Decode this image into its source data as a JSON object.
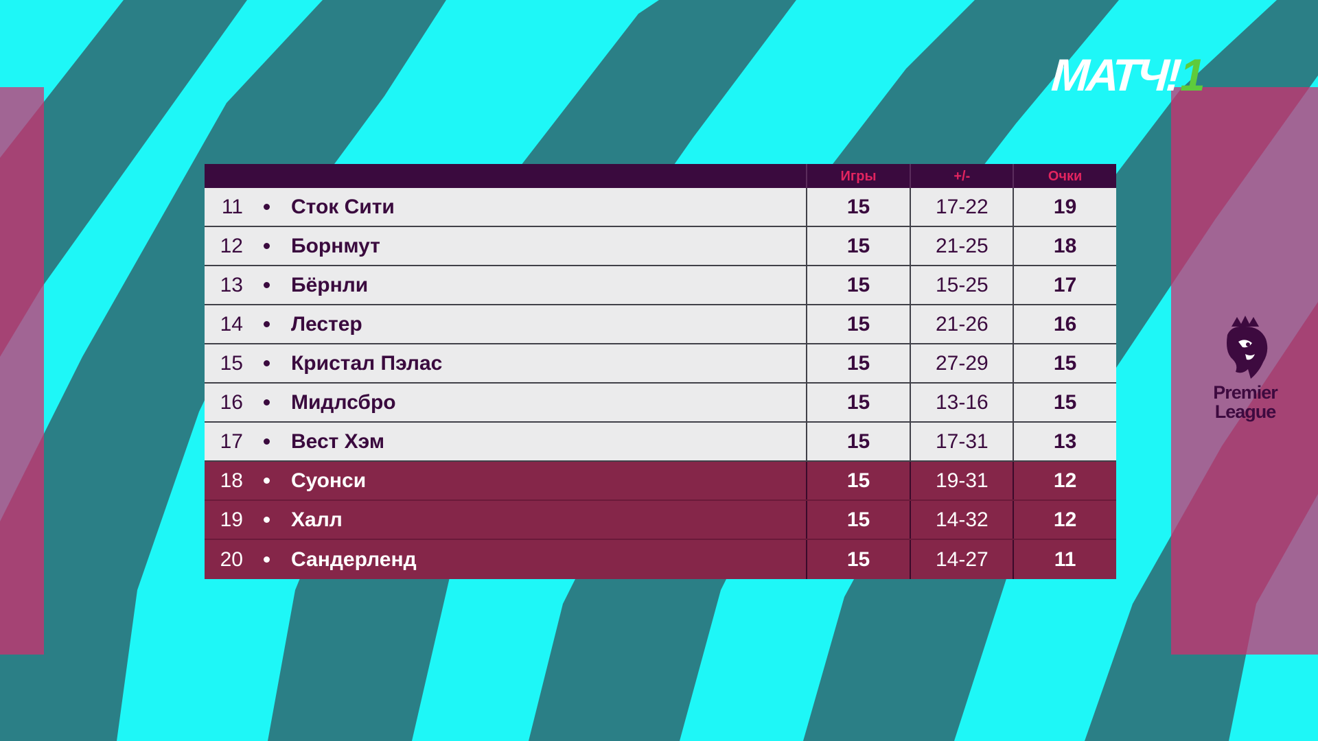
{
  "channel": {
    "logo_text": "МАТЧ!",
    "logo_number": "1",
    "accent_color": "#5ecb3c"
  },
  "league": {
    "logo_line1": "Premier",
    "logo_line2": "League",
    "logo_icon": "lion-crest-icon"
  },
  "colors": {
    "background": "#1ef7f7",
    "stripes": "#2b7f86",
    "side_panels": "#d42c6e",
    "header_bg": "#3a0a3e",
    "header_text": "#e2245f",
    "relegation_row": "#852649"
  },
  "table": {
    "headers": {
      "games": "Игры",
      "diff": "+/-",
      "points": "Очки"
    },
    "rows": [
      {
        "pos": "11",
        "team": "Сток Сити",
        "games": "15",
        "diff": "17-22",
        "points": "19",
        "relegation": false
      },
      {
        "pos": "12",
        "team": "Борнмут",
        "games": "15",
        "diff": "21-25",
        "points": "18",
        "relegation": false
      },
      {
        "pos": "13",
        "team": "Бёрнли",
        "games": "15",
        "diff": "15-25",
        "points": "17",
        "relegation": false
      },
      {
        "pos": "14",
        "team": "Лестер",
        "games": "15",
        "diff": "21-26",
        "points": "16",
        "relegation": false
      },
      {
        "pos": "15",
        "team": "Кристал Пэлас",
        "games": "15",
        "diff": "27-29",
        "points": "15",
        "relegation": false
      },
      {
        "pos": "16",
        "team": "Мидлсбро",
        "games": "15",
        "diff": "13-16",
        "points": "15",
        "relegation": false
      },
      {
        "pos": "17",
        "team": "Вест Хэм",
        "games": "15",
        "diff": "17-31",
        "points": "13",
        "relegation": false
      },
      {
        "pos": "18",
        "team": "Суонси",
        "games": "15",
        "diff": "19-31",
        "points": "12",
        "relegation": true
      },
      {
        "pos": "19",
        "team": "Халл",
        "games": "15",
        "diff": "14-32",
        "points": "12",
        "relegation": true
      },
      {
        "pos": "20",
        "team": "Сандерленд",
        "games": "15",
        "diff": "14-27",
        "points": "11",
        "relegation": true
      }
    ]
  }
}
